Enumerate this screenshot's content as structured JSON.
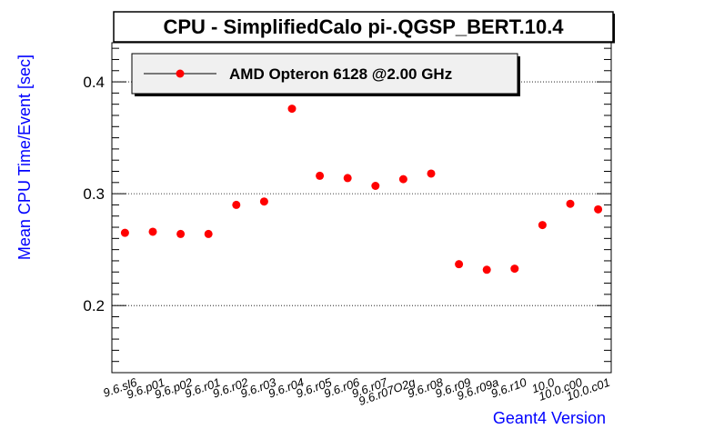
{
  "chart_data": {
    "type": "scatter",
    "title": "CPU - SimplifiedCalo pi-.QGSP_BERT.10.4",
    "xlabel": "Geant4 Version",
    "ylabel": "Mean CPU Time/Event [sec]",
    "ylim": [
      0.14,
      0.435
    ],
    "yticks": [
      0.2,
      0.3,
      0.4
    ],
    "ytick_labels": [
      "0.2",
      "0.3",
      "0.4"
    ],
    "grid": "horizontal dotted at major ticks",
    "legend_position": "top-left",
    "categories": [
      "9.6.sl6",
      "9.6.p01",
      "9.6.p02",
      "9.6.r01",
      "9.6.r02",
      "9.6.r03",
      "9.6.r04",
      "9.6.r05",
      "9.6.r06",
      "9.6.r07",
      "9.6.r07O2g",
      "9.6.r08",
      "9.6.r09",
      "9.6.r09a",
      "9.6.r10",
      "10.0",
      "10.0.c00",
      "10.0.c01"
    ],
    "series": [
      {
        "name": "AMD Opteron 6128 @2.00 GHz",
        "color": "#ff0000",
        "values": [
          0.265,
          0.266,
          0.264,
          0.264,
          0.29,
          0.293,
          0.376,
          0.316,
          0.314,
          0.307,
          0.313,
          0.318,
          0.237,
          0.232,
          0.233,
          0.272,
          0.291,
          0.286
        ]
      }
    ],
    "colors": {
      "axis_title": "#0000ff",
      "marker": "#ff0000",
      "legend_bg": "#f0f0f0"
    }
  }
}
